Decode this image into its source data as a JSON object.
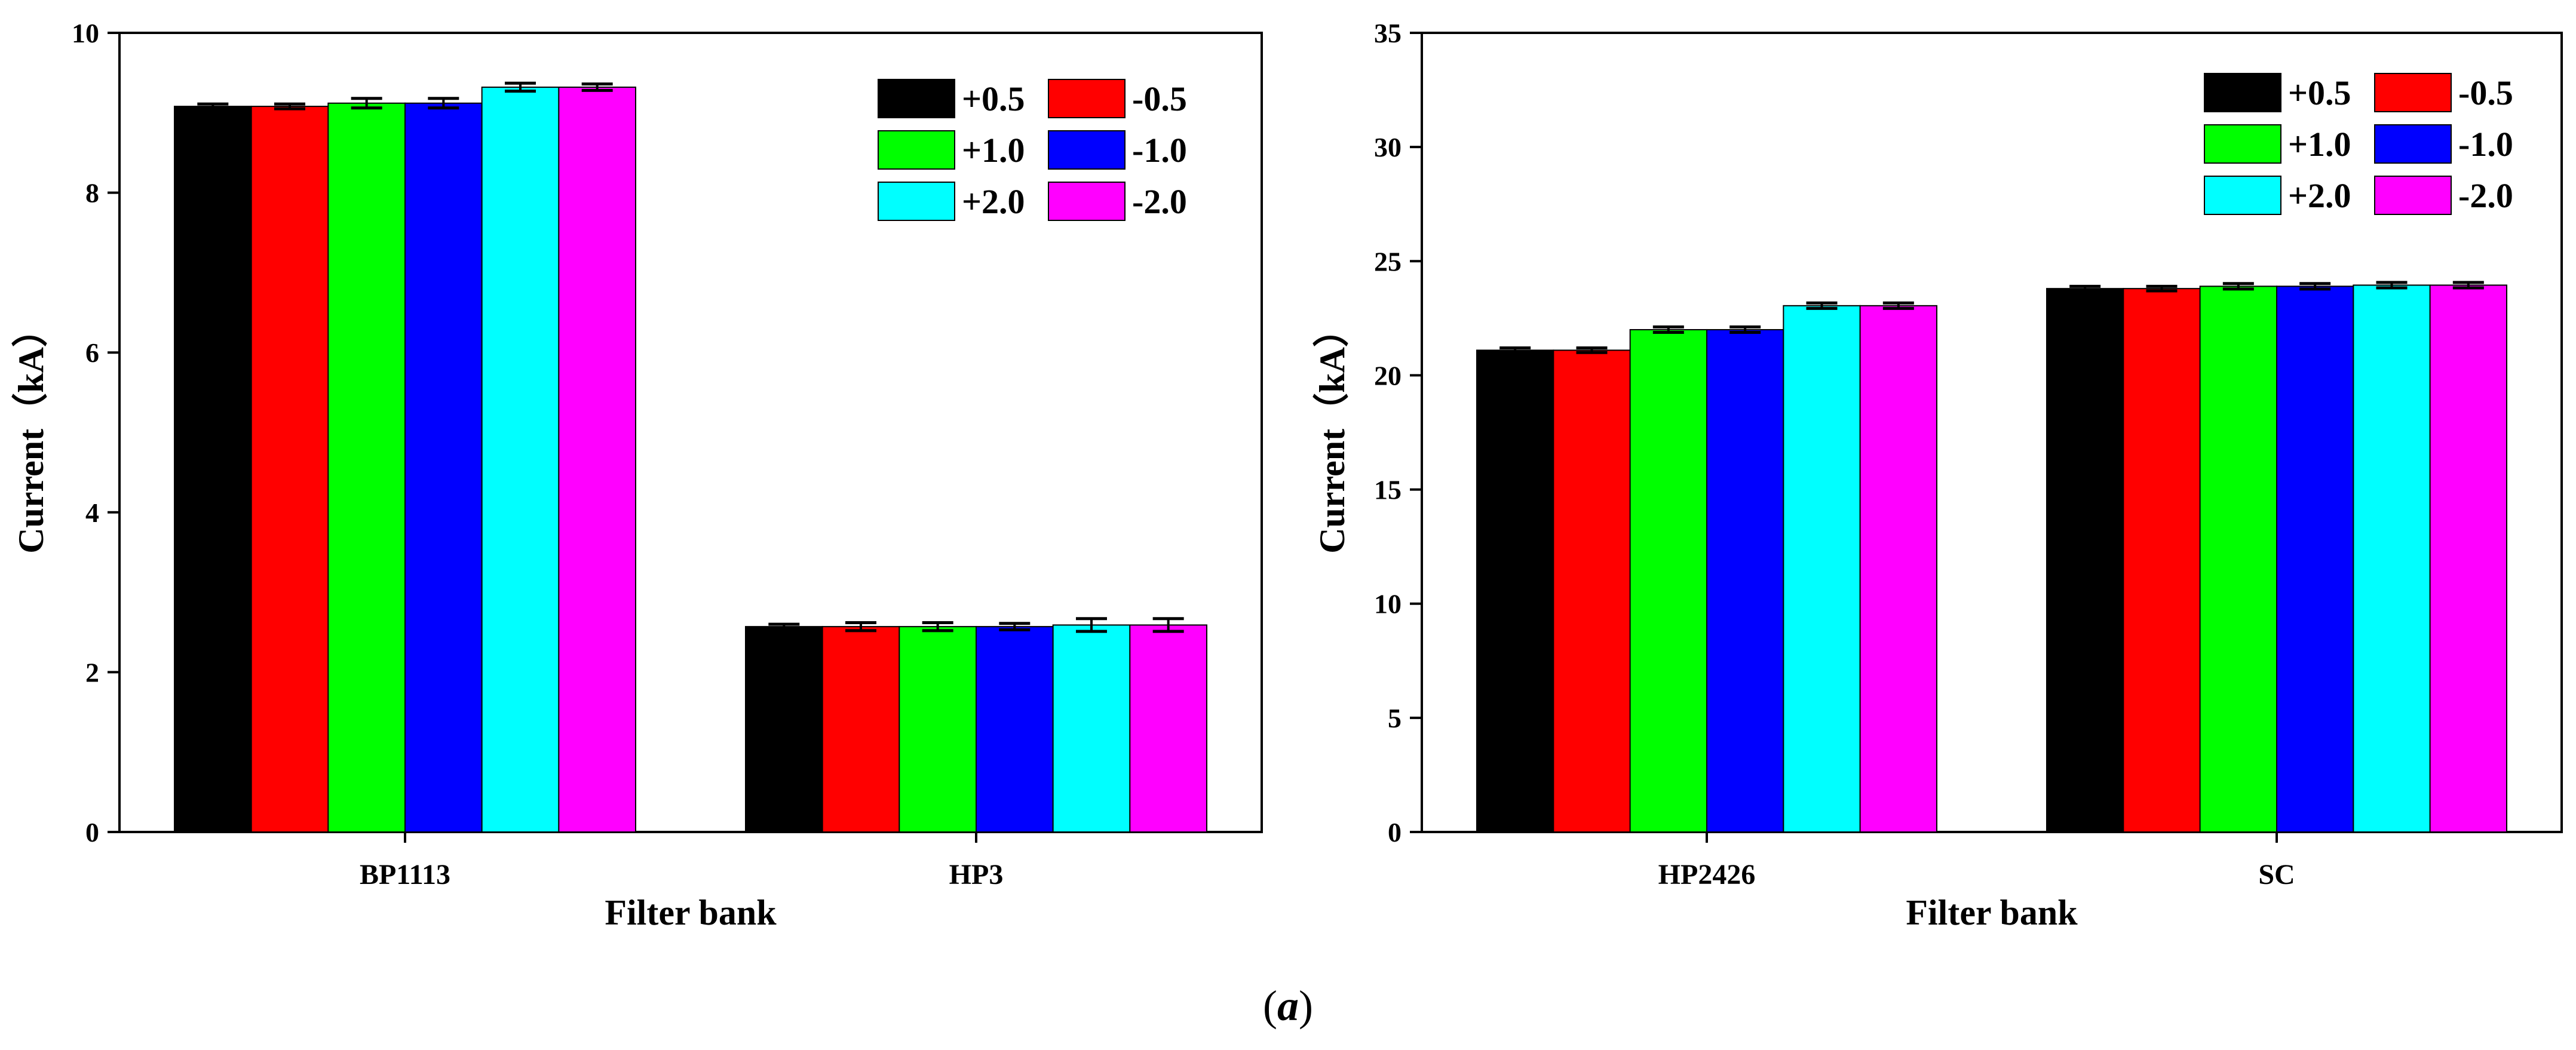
{
  "caption": {
    "open": "(",
    "letter": "a",
    "close": ")"
  },
  "legend_series": [
    "+0.5",
    "-0.5",
    "+1.0",
    "-1.0",
    "+2.0",
    "-2.0"
  ],
  "chart_data": [
    {
      "type": "bar",
      "xlabel": "Filter bank",
      "ylabel": "Current（kA）",
      "categories": [
        "BP1113",
        "HP3"
      ],
      "ylim": [
        0,
        10
      ],
      "yticks": [
        0,
        2,
        4,
        6,
        8,
        10
      ],
      "grid": false,
      "legend_position": "top-right",
      "series": [
        {
          "name": "+0.5",
          "color": "#000000",
          "values": [
            9.08,
            2.57
          ],
          "errors": [
            0.03,
            0.03
          ]
        },
        {
          "name": "-0.5",
          "color": "#ff0000",
          "values": [
            9.08,
            2.57
          ],
          "errors": [
            0.03,
            0.05
          ]
        },
        {
          "name": "+1.0",
          "color": "#00ff00",
          "values": [
            9.12,
            2.57
          ],
          "errors": [
            0.06,
            0.05
          ]
        },
        {
          "name": "-1.0",
          "color": "#0000ff",
          "values": [
            9.12,
            2.57
          ],
          "errors": [
            0.06,
            0.04
          ]
        },
        {
          "name": "+2.0",
          "color": "#00ffff",
          "values": [
            9.32,
            2.59
          ],
          "errors": [
            0.05,
            0.08
          ]
        },
        {
          "name": "-2.0",
          "color": "#ff00ff",
          "values": [
            9.32,
            2.59
          ],
          "errors": [
            0.04,
            0.08
          ]
        }
      ]
    },
    {
      "type": "bar",
      "xlabel": "Filter bank",
      "ylabel": "Current（kA）",
      "categories": [
        "HP2426",
        "SC"
      ],
      "ylim": [
        0,
        35
      ],
      "yticks": [
        0,
        5,
        10,
        15,
        20,
        25,
        30,
        35
      ],
      "grid": false,
      "legend_position": "top-right",
      "series": [
        {
          "name": "+0.5",
          "color": "#000000",
          "values": [
            21.1,
            23.8
          ],
          "errors": [
            0.1,
            0.1
          ]
        },
        {
          "name": "-0.5",
          "color": "#ff0000",
          "values": [
            21.1,
            23.8
          ],
          "errors": [
            0.1,
            0.1
          ]
        },
        {
          "name": "+1.0",
          "color": "#00ff00",
          "values": [
            22.0,
            23.9
          ],
          "errors": [
            0.12,
            0.12
          ]
        },
        {
          "name": "-1.0",
          "color": "#0000ff",
          "values": [
            22.0,
            23.9
          ],
          "errors": [
            0.12,
            0.12
          ]
        },
        {
          "name": "+2.0",
          "color": "#00ffff",
          "values": [
            23.05,
            23.95
          ],
          "errors": [
            0.12,
            0.12
          ]
        },
        {
          "name": "-2.0",
          "color": "#ff00ff",
          "values": [
            23.05,
            23.95
          ],
          "errors": [
            0.12,
            0.12
          ]
        }
      ]
    }
  ]
}
